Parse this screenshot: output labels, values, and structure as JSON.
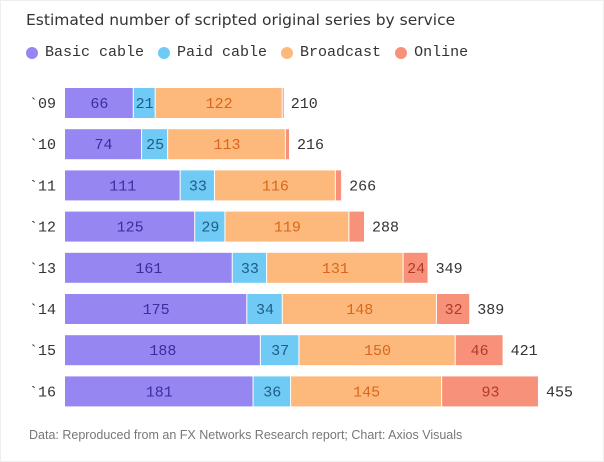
{
  "chart_data": {
    "type": "bar",
    "orientation": "horizontal",
    "stacked": true,
    "title": "Estimated number of scripted original series by service",
    "categories": [
      "`09",
      "`10",
      "`11",
      "`12",
      "`13",
      "`14",
      "`15",
      "`16"
    ],
    "series": [
      {
        "name": "Basic cable",
        "color": "#9586f2",
        "label_color": "#3f2c9c",
        "values": [
          66,
          74,
          111,
          125,
          161,
          175,
          188,
          181
        ]
      },
      {
        "name": "Paid cable",
        "color": "#6fcaf5",
        "label_color": "#1e5c86",
        "values": [
          21,
          25,
          33,
          29,
          33,
          34,
          37,
          36
        ]
      },
      {
        "name": "Broadcast",
        "color": "#fdb97c",
        "label_color": "#d9661a",
        "values": [
          122,
          113,
          116,
          119,
          131,
          148,
          150,
          145
        ]
      },
      {
        "name": "Online",
        "color": "#f8917a",
        "label_color": "#b13a2b",
        "values": [
          1,
          4,
          6,
          15,
          24,
          32,
          46,
          93
        ],
        "labeled": [
          false,
          false,
          false,
          false,
          true,
          true,
          true,
          true
        ]
      }
    ],
    "totals": [
      210,
      216,
      266,
      288,
      349,
      389,
      421,
      455
    ],
    "legend": "top-left",
    "grid": false
  },
  "source": "Data: Reproduced from an FX Networks Research report; Chart: Axios Visuals"
}
